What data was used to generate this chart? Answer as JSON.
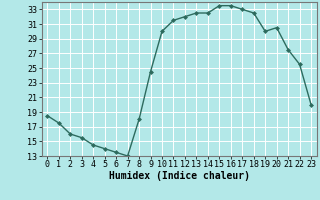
{
  "x": [
    0,
    1,
    2,
    3,
    4,
    5,
    6,
    7,
    8,
    9,
    10,
    11,
    12,
    13,
    14,
    15,
    16,
    17,
    18,
    19,
    20,
    21,
    22,
    23
  ],
  "y": [
    18.5,
    17.5,
    16.0,
    15.5,
    14.5,
    14.0,
    13.5,
    13.0,
    18.0,
    24.5,
    30.0,
    31.5,
    32.0,
    32.5,
    32.5,
    33.5,
    33.5,
    33.0,
    32.5,
    30.0,
    30.5,
    27.5,
    25.5,
    20.0
  ],
  "line_color": "#2d6b5e",
  "marker": "D",
  "markersize": 2.0,
  "linewidth": 1.0,
  "bg_color": "#b3e8e8",
  "grid_color": "#ffffff",
  "xlabel": "Humidex (Indice chaleur)",
  "xlabel_fontsize": 7,
  "tick_fontsize": 6,
  "ylim": [
    13,
    34
  ],
  "xlim": [
    -0.5,
    23.5
  ],
  "yticks": [
    13,
    15,
    17,
    19,
    21,
    23,
    25,
    27,
    29,
    31,
    33
  ],
  "xticks": [
    0,
    1,
    2,
    3,
    4,
    5,
    6,
    7,
    8,
    9,
    10,
    11,
    12,
    13,
    14,
    15,
    16,
    17,
    18,
    19,
    20,
    21,
    22,
    23
  ]
}
